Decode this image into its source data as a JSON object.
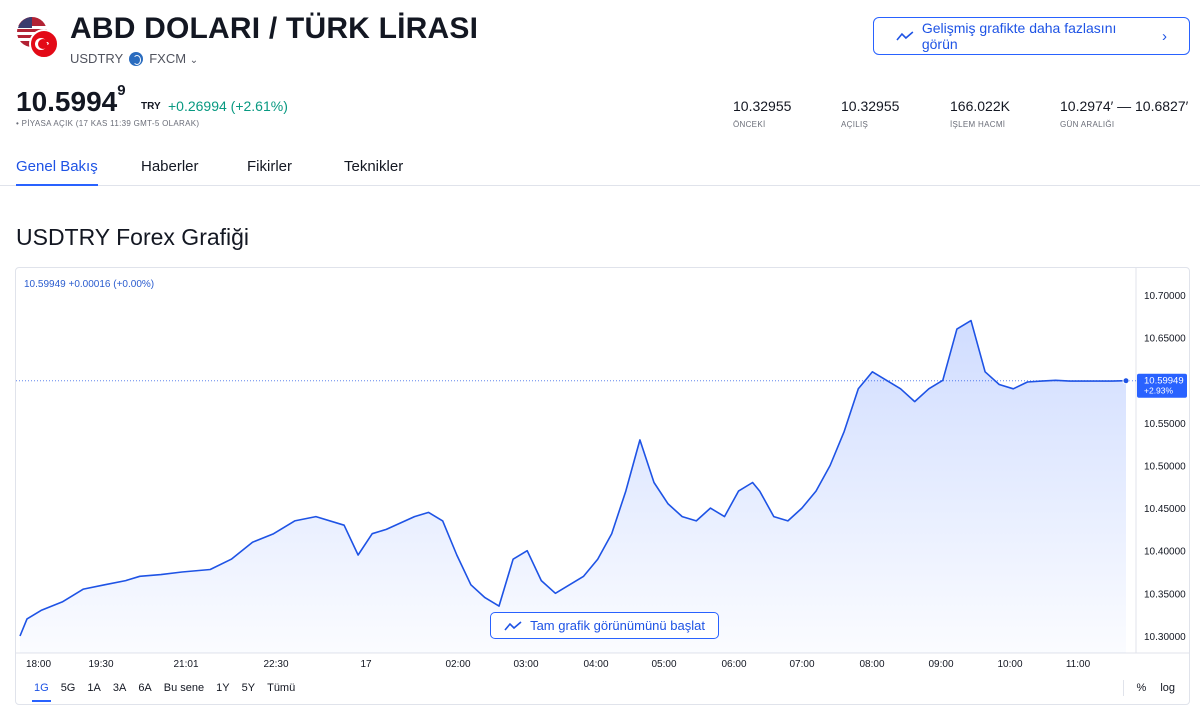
{
  "header": {
    "title": "ABD DOLARI / TÜRK LİRASI",
    "symbol": "USDTRY",
    "exchange": "FXCM",
    "advanced_chart_button": "Gelişmiş grafikte daha fazlasını görün"
  },
  "quote": {
    "price_main": "10.5994",
    "price_sup": "9",
    "currency": "TRY",
    "change": "+0.26994 (+2.61%)",
    "market_status": "• PİYASA AÇIK (17 KAS 11:39 GMT-5 OLARAK)"
  },
  "stats": [
    {
      "value": "10.32955",
      "label": "ÖNCEKİ"
    },
    {
      "value": "10.32955",
      "label": "AÇILIŞ"
    },
    {
      "value": "166.022K",
      "label": "İŞLEM HACMİ"
    },
    {
      "value": "10.2974′ — 10.6827′",
      "label": "GÜN ARALIĞI"
    }
  ],
  "tabs": [
    {
      "label": "Genel Bakış",
      "active": true
    },
    {
      "label": "Haberler",
      "active": false
    },
    {
      "label": "Fikirler",
      "active": false
    },
    {
      "label": "Teknikler",
      "active": false
    }
  ],
  "section_title": "USDTRY Forex Grafiği",
  "chart": {
    "legend": "10.59949  +0.00016 (+0.00%)",
    "start_button": "Tam grafik görünümünü başlat",
    "ranges": [
      {
        "label": "1G",
        "active": true
      },
      {
        "label": "5G",
        "active": false
      },
      {
        "label": "1A",
        "active": false
      },
      {
        "label": "3A",
        "active": false
      },
      {
        "label": "6A",
        "active": false
      },
      {
        "label": "Bu sene",
        "active": false
      },
      {
        "label": "1Y",
        "active": false
      },
      {
        "label": "5Y",
        "active": false
      },
      {
        "label": "Tümü",
        "active": false
      }
    ],
    "scale_percent": "%",
    "scale_log": "log",
    "line_color": "#1e53e5"
  },
  "chart_data": {
    "type": "area",
    "y_ticks": [
      "10.70000",
      "10.65000",
      "10.60000",
      "10.55000",
      "10.50000",
      "10.45000",
      "10.40000",
      "10.35000",
      "10.30000"
    ],
    "x_ticks": [
      "18:00",
      "19:30",
      "21:01",
      "22:30",
      "17",
      "02:00",
      "03:00",
      "04:00",
      "05:00",
      "06:00",
      "07:00",
      "08:00",
      "09:00",
      "10:00",
      "11:00"
    ],
    "ylim": [
      10.28,
      10.72
    ],
    "last_value": 10.59949,
    "last_label": "10.59949",
    "last_change_label": "+2.93%",
    "series": [
      {
        "x": [
          0,
          0.1,
          0.3,
          0.6,
          0.9,
          1.2,
          1.5,
          1.7,
          2.0,
          2.3,
          2.7,
          3.0,
          3.3,
          3.6,
          3.9,
          4.2,
          4.6,
          4.8,
          5.0,
          5.2,
          5.6,
          5.8,
          6.0,
          6.2,
          6.4,
          6.6,
          6.8,
          7.0,
          7.2,
          7.4,
          7.6,
          7.8,
          8.0,
          8.2,
          8.4,
          8.6,
          8.8,
          9.0,
          9.2,
          9.4,
          9.6,
          9.8,
          10.0,
          10.2,
          10.4,
          10.5,
          10.7,
          10.9,
          11.1,
          11.3,
          11.5,
          11.7,
          11.9,
          12.1,
          12.3,
          12.5,
          12.7,
          12.9,
          13.1,
          13.3,
          13.5,
          13.7,
          13.9,
          14.1,
          14.3,
          14.5,
          14.7,
          14.9,
          15.1,
          15.3,
          15.5,
          15.7
        ],
        "y": [
          10.3,
          10.32,
          10.33,
          10.34,
          10.355,
          10.36,
          10.365,
          10.37,
          10.372,
          10.375,
          10.378,
          10.39,
          10.41,
          10.42,
          10.435,
          10.44,
          10.43,
          10.395,
          10.42,
          10.425,
          10.44,
          10.445,
          10.435,
          10.395,
          10.36,
          10.345,
          10.335,
          10.39,
          10.4,
          10.365,
          10.35,
          10.36,
          10.37,
          10.39,
          10.42,
          10.47,
          10.53,
          10.48,
          10.455,
          10.44,
          10.435,
          10.45,
          10.44,
          10.47,
          10.48,
          10.47,
          10.44,
          10.435,
          10.45,
          10.47,
          10.5,
          10.54,
          10.59,
          10.61,
          10.6,
          10.59,
          10.575,
          10.59,
          10.6,
          10.66,
          10.67,
          10.61,
          10.595,
          10.59,
          10.598,
          10.599,
          10.6,
          10.599,
          10.599,
          10.599,
          10.599,
          10.59949
        ]
      }
    ]
  }
}
